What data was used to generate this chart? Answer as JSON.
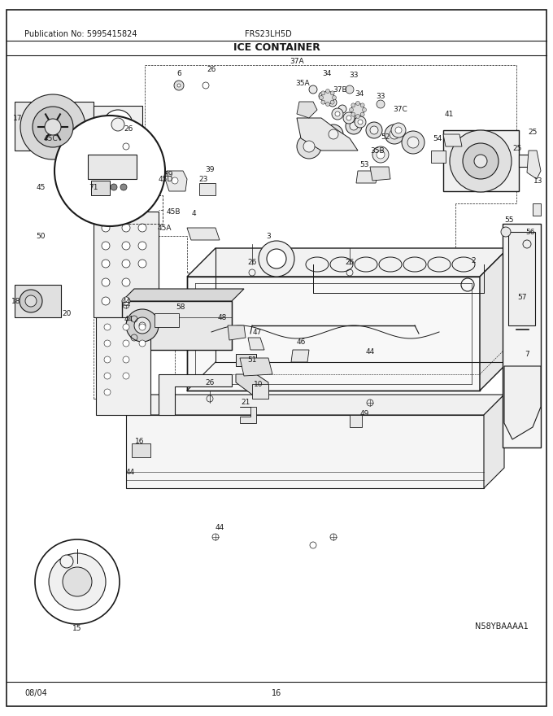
{
  "publication_no": "Publication No: 5995415824",
  "model": "FRS23LH5D",
  "title": "ICE CONTAINER",
  "diagram_id": "N58YBAAAA1",
  "date": "08/04",
  "page": "16",
  "bg_color": "#ffffff",
  "border_color": "#000000",
  "text_color": "#000000",
  "fig_width": 6.8,
  "fig_height": 8.8,
  "dpi": 100
}
